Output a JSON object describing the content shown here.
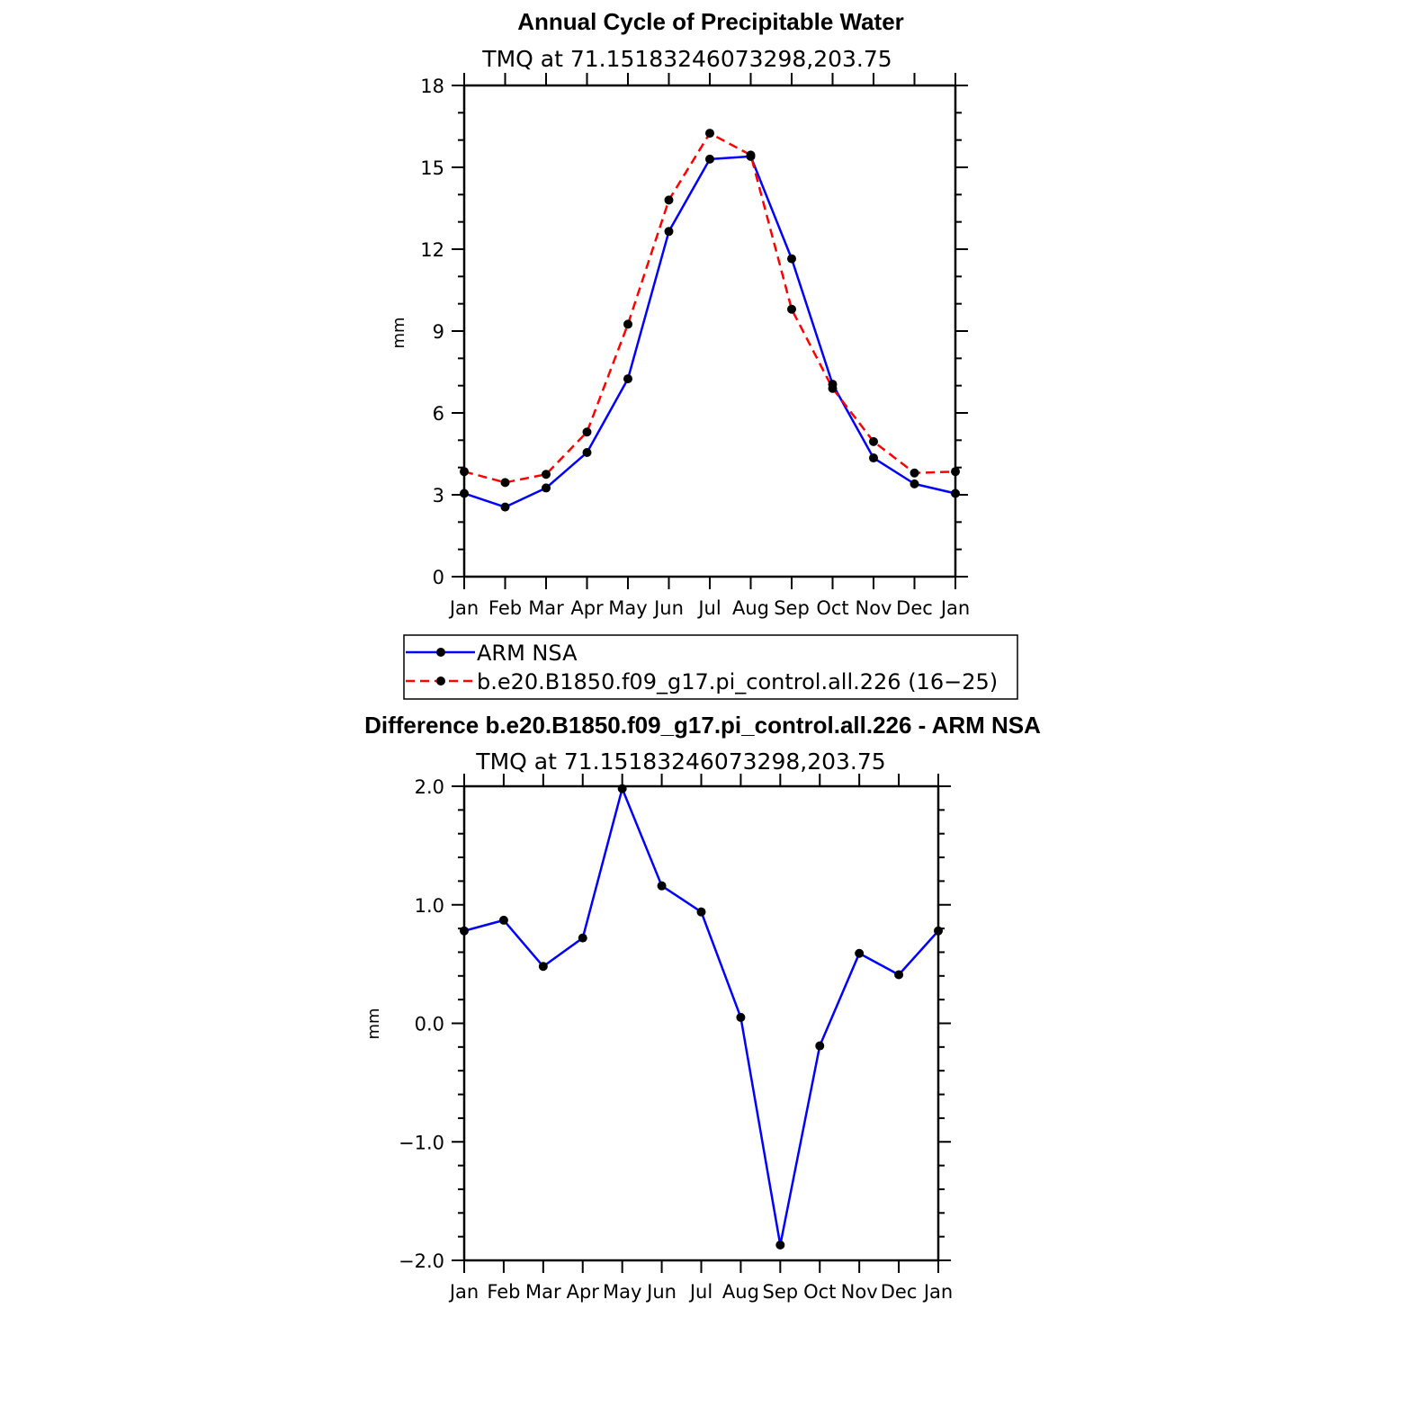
{
  "chart_data": [
    {
      "type": "line",
      "title": "Annual Cycle of Precipitable Water",
      "subtitle": "TMQ  at  71.15183246073298,203.75",
      "xlabel": "",
      "ylabel": "mm",
      "categories": [
        "Jan",
        "Feb",
        "Mar",
        "Apr",
        "May",
        "Jun",
        "Jul",
        "Aug",
        "Sep",
        "Oct",
        "Nov",
        "Dec",
        "Jan"
      ],
      "ylim": [
        0,
        18
      ],
      "yticks": [
        "0",
        "3",
        "6",
        "9",
        "12",
        "15",
        "18"
      ],
      "series": [
        {
          "name": "ARM NSA",
          "color": "#0000ff",
          "style": "solid",
          "values": [
            3.05,
            2.55,
            3.25,
            4.55,
            7.25,
            12.65,
            15.3,
            15.4,
            11.65,
            7.05,
            4.35,
            3.4,
            3.05
          ]
        },
        {
          "name": "b.e20.B1850.f09_g17.pi_control.all.226  (16−25)",
          "color": "#ff0000",
          "style": "dashed",
          "values": [
            3.85,
            3.45,
            3.75,
            5.3,
            9.25,
            13.8,
            16.25,
            15.45,
            9.8,
            6.9,
            4.95,
            3.8,
            3.85
          ]
        }
      ],
      "legend": "bottom"
    },
    {
      "type": "line",
      "title": "Difference b.e20.B1850.f09_g17.pi_control.all.226 - ARM NSA",
      "subtitle": "TMQ  at  71.15183246073298,203.75",
      "xlabel": "",
      "ylabel": "mm",
      "categories": [
        "Jan",
        "Feb",
        "Mar",
        "Apr",
        "May",
        "Jun",
        "Jul",
        "Aug",
        "Sep",
        "Oct",
        "Nov",
        "Dec",
        "Jan"
      ],
      "ylim": [
        -2.0,
        2.0
      ],
      "yticks": [
        "−2.0",
        "−1.0",
        "0.0",
        "1.0",
        "2.0"
      ],
      "series": [
        {
          "name": "Difference",
          "color": "#0000ff",
          "style": "solid",
          "values": [
            0.78,
            0.87,
            0.48,
            0.72,
            1.98,
            1.16,
            0.94,
            0.05,
            -1.87,
            -0.19,
            0.59,
            0.41,
            0.78
          ]
        }
      ]
    }
  ],
  "legend": {
    "entries": [
      "ARM NSA",
      "b.e20.B1850.f09_g17.pi_control.all.226  (16−25)"
    ]
  }
}
